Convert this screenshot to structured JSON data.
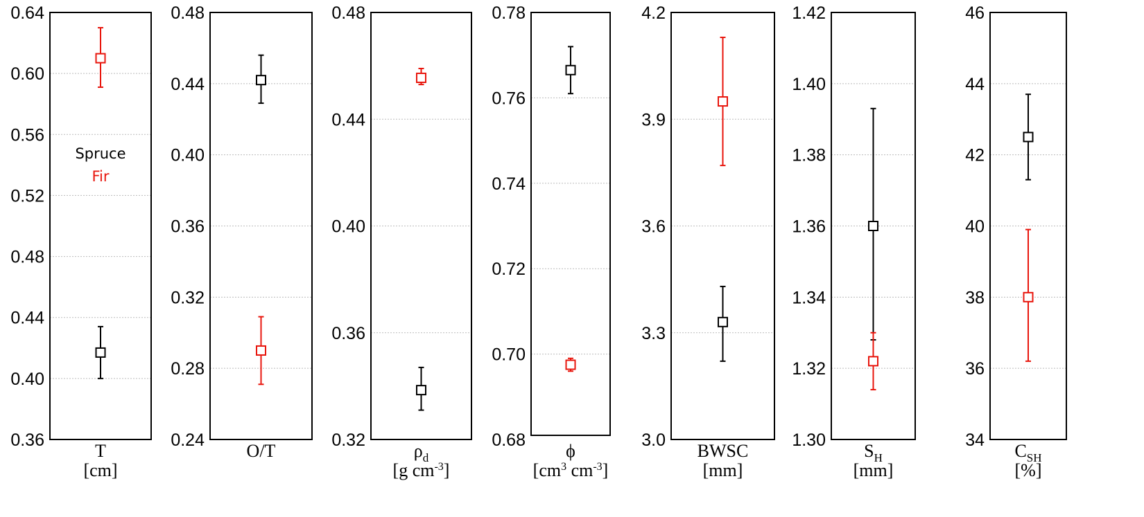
{
  "colors": {
    "spruce": "#000000",
    "fir": "#e8150c",
    "grid": "#bbbbbb"
  },
  "legend": {
    "spruce": "Spruce",
    "fir": "Fir",
    "placement": "inside first panel, middle-left"
  },
  "chart_data": [
    {
      "type": "scatter",
      "xlabel": [
        "T",
        "[cm]"
      ],
      "ylim": [
        0.36,
        0.64
      ],
      "ticks": [
        "0.36",
        "0.40",
        "0.44",
        "0.48",
        "0.52",
        "0.56",
        "0.60",
        "0.64"
      ],
      "series": [
        {
          "name": "Spruce",
          "color": "#000000",
          "mean": 0.417,
          "low": 0.4,
          "high": 0.434
        },
        {
          "name": "Fir",
          "color": "#e8150c",
          "mean": 0.61,
          "low": 0.591,
          "high": 0.63
        }
      ]
    },
    {
      "type": "scatter",
      "xlabel": [
        "O/T"
      ],
      "ylim": [
        0.24,
        0.48
      ],
      "ticks": [
        "0.24",
        "0.28",
        "0.32",
        "0.36",
        "0.40",
        "0.44",
        "0.48"
      ],
      "series": [
        {
          "name": "Spruce",
          "color": "#000000",
          "mean": 0.442,
          "low": 0.429,
          "high": 0.456
        },
        {
          "name": "Fir",
          "color": "#e8150c",
          "mean": 0.29,
          "low": 0.271,
          "high": 0.309
        }
      ]
    },
    {
      "type": "scatter",
      "xlabel": [
        "ρd",
        "[g cm-3]"
      ],
      "ylim": [
        0.32,
        0.48
      ],
      "ticks": [
        "0.32",
        "0.36",
        "0.40",
        "0.44",
        "0.48"
      ],
      "series": [
        {
          "name": "Spruce",
          "color": "#000000",
          "mean": 0.3385,
          "low": 0.331,
          "high": 0.347
        },
        {
          "name": "Fir",
          "color": "#e8150c",
          "mean": 0.4555,
          "low": 0.453,
          "high": 0.459
        }
      ]
    },
    {
      "type": "scatter",
      "xlabel": [
        "ϕ",
        "[cm3 cm-3]"
      ],
      "ylim": [
        0.68,
        0.78
      ],
      "ticks": [
        "0.68",
        "0.70",
        "0.72",
        "0.74",
        "0.76",
        "0.78"
      ],
      "series": [
        {
          "name": "Spruce",
          "color": "#000000",
          "mean": 0.7665,
          "low": 0.761,
          "high": 0.772
        },
        {
          "name": "Fir",
          "color": "#e8150c",
          "mean": 0.6975,
          "low": 0.696,
          "high": 0.699
        }
      ]
    },
    {
      "type": "scatter",
      "xlabel": [
        "BWSC",
        "[mm]"
      ],
      "ylim": [
        3.0,
        4.2
      ],
      "ticks": [
        "3.0",
        "3.3",
        "3.6",
        "3.9",
        "4.2"
      ],
      "series": [
        {
          "name": "Spruce",
          "color": "#000000",
          "mean": 3.33,
          "low": 3.22,
          "high": 3.43
        },
        {
          "name": "Fir",
          "color": "#e8150c",
          "mean": 3.95,
          "low": 3.77,
          "high": 4.13
        }
      ]
    },
    {
      "type": "scatter",
      "xlabel": [
        "SH",
        "[mm]"
      ],
      "ylim": [
        1.3,
        1.42
      ],
      "ticks": [
        "1.30",
        "1.32",
        "1.34",
        "1.36",
        "1.38",
        "1.40",
        "1.42"
      ],
      "series": [
        {
          "name": "Spruce",
          "color": "#000000",
          "mean": 1.36,
          "low": 1.328,
          "high": 1.393
        },
        {
          "name": "Fir",
          "color": "#e8150c",
          "mean": 1.322,
          "low": 1.314,
          "high": 1.33
        }
      ]
    },
    {
      "type": "scatter",
      "xlabel": [
        "CSH",
        "[%]"
      ],
      "ylim": [
        34,
        46
      ],
      "ticks": [
        "34",
        "36",
        "38",
        "40",
        "42",
        "44",
        "46"
      ],
      "series": [
        {
          "name": "Spruce",
          "color": "#000000",
          "mean": 42.5,
          "low": 41.3,
          "high": 43.7
        },
        {
          "name": "Fir",
          "color": "#e8150c",
          "mean": 38.0,
          "low": 36.2,
          "high": 39.9
        }
      ]
    }
  ]
}
